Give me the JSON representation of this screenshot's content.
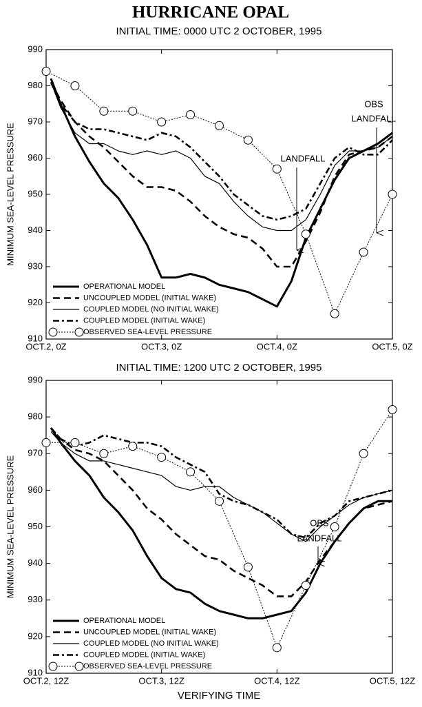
{
  "title": "HURRICANE OPAL",
  "xlabel": "VERIFYING TIME",
  "chart_data": [
    {
      "type": "line",
      "subtitle": "INITIAL TIME: 0000 UTC 2 OCTOBER, 1995",
      "ylabel": "MINIMUM SEA-LEVEL PRESSURE",
      "xlim": [
        0,
        72
      ],
      "ylim": [
        910,
        990
      ],
      "xticks": [
        {
          "value": 0,
          "label": "OCT.2, 0Z"
        },
        {
          "value": 24,
          "label": "OCT.3, 0Z"
        },
        {
          "value": 48,
          "label": "OCT.4, 0Z"
        },
        {
          "value": 72,
          "label": "OCT.5, 0Z"
        }
      ],
      "yticks": [
        910,
        920,
        930,
        940,
        950,
        960,
        970,
        980,
        990
      ],
      "legend": "lower left",
      "annotations": [
        [
          "LANDFALL"
        ],
        [
          "OBS",
          "LANDFALL"
        ]
      ],
      "series": [
        {
          "name": "OPERATIONAL MODEL",
          "color": "#000000",
          "width": 3,
          "dash": "none",
          "x": [
            1,
            3,
            6,
            9,
            12,
            15,
            18,
            21,
            24,
            27,
            30,
            33,
            36,
            39,
            42,
            45,
            48,
            51,
            54,
            57,
            60,
            63,
            66,
            69,
            72
          ],
          "values": [
            982,
            975,
            966,
            959,
            953,
            949,
            943,
            936,
            927,
            927,
            928,
            927,
            925,
            924,
            923,
            921,
            919,
            926,
            938,
            946,
            954,
            960,
            962,
            964,
            967
          ]
        },
        {
          "name": "UNCOUPLED MODEL (INITIAL WAKE)",
          "color": "#000000",
          "width": 2.6,
          "dash": "10,6",
          "x": [
            1,
            3,
            6,
            9,
            12,
            15,
            18,
            21,
            24,
            27,
            30,
            33,
            36,
            39,
            42,
            45,
            48,
            51,
            54,
            57,
            60,
            63,
            66,
            69,
            72
          ],
          "values": [
            981,
            976,
            970,
            966,
            963,
            959,
            955,
            952,
            952,
            951,
            948,
            944,
            941,
            939,
            938,
            935,
            930,
            930,
            937,
            945,
            955,
            961,
            962,
            963,
            966
          ]
        },
        {
          "name": "COUPLED MODEL (NO INITIAL WAKE)",
          "color": "#000000",
          "width": 1.2,
          "dash": "none",
          "x": [
            1,
            3,
            6,
            9,
            12,
            15,
            18,
            21,
            24,
            27,
            30,
            33,
            36,
            39,
            42,
            45,
            48,
            51,
            54,
            57,
            60,
            63,
            66,
            69,
            72
          ],
          "values": [
            981,
            974,
            967,
            964,
            964,
            962,
            961,
            962,
            961,
            962,
            960,
            955,
            953,
            948,
            944,
            941,
            940,
            940,
            943,
            950,
            958,
            962,
            962,
            963,
            966
          ]
        },
        {
          "name": "COUPLED MODEL (INITIAL WAKE)",
          "color": "#000000",
          "width": 2.6,
          "dash": "9,4,3,4",
          "x": [
            1,
            3,
            6,
            9,
            12,
            15,
            18,
            21,
            24,
            27,
            30,
            33,
            36,
            39,
            42,
            45,
            48,
            51,
            54,
            57,
            60,
            63,
            66,
            69,
            72
          ],
          "values": [
            981,
            975,
            970,
            968,
            968,
            967,
            966,
            965,
            967,
            966,
            963,
            959,
            955,
            950,
            947,
            944,
            943,
            944,
            946,
            953,
            960,
            963,
            961,
            961,
            965
          ]
        },
        {
          "name": "OBSERVED SEA-LEVEL PRESSURE",
          "color": "#000000",
          "width": 1,
          "dash": "2,2",
          "marker": "circle",
          "x": [
            0,
            6,
            12,
            18,
            24,
            30,
            36,
            42,
            48,
            54,
            60,
            66,
            72
          ],
          "values": [
            984,
            980,
            973,
            973,
            970,
            972,
            969,
            965,
            957,
            939,
            917,
            934,
            950
          ]
        }
      ]
    },
    {
      "type": "line",
      "subtitle": "INITIAL TIME: 1200 UTC 2 OCTOBER, 1995",
      "ylabel": "MINIMUM SEA-LEVEL PRESSURE",
      "xlim": [
        0,
        72
      ],
      "ylim": [
        910,
        990
      ],
      "xticks": [
        {
          "value": 0,
          "label": "OCT.2, 12Z"
        },
        {
          "value": 24,
          "label": "OCT.3, 12Z"
        },
        {
          "value": 48,
          "label": "OCT.4, 12Z"
        },
        {
          "value": 72,
          "label": "OCT.5, 12Z"
        }
      ],
      "yticks": [
        910,
        920,
        930,
        940,
        950,
        960,
        970,
        980,
        990
      ],
      "legend": "lower left",
      "annotations": [
        [
          "OBS",
          "LANDFALL"
        ]
      ],
      "series": [
        {
          "name": "OPERATIONAL MODEL",
          "color": "#000000",
          "width": 3,
          "dash": "none",
          "x": [
            1,
            3,
            6,
            9,
            12,
            15,
            18,
            21,
            24,
            27,
            30,
            33,
            36,
            39,
            42,
            45,
            48,
            51,
            54,
            57,
            60,
            63,
            66,
            69,
            72
          ],
          "values": [
            977,
            973,
            968,
            964,
            958,
            954,
            949,
            942,
            936,
            933,
            932,
            929,
            927,
            926,
            925,
            925,
            926,
            927,
            932,
            940,
            946,
            951,
            955,
            957,
            957
          ]
        },
        {
          "name": "UNCOUPLED MODEL (INITIAL WAKE)",
          "color": "#000000",
          "width": 2.6,
          "dash": "10,6",
          "x": [
            1,
            3,
            6,
            9,
            12,
            15,
            18,
            21,
            24,
            27,
            30,
            33,
            36,
            39,
            42,
            45,
            48,
            51,
            54,
            57,
            60,
            63,
            66,
            69,
            72
          ],
          "values": [
            977,
            974,
            971,
            970,
            968,
            964,
            960,
            955,
            952,
            948,
            945,
            942,
            941,
            938,
            936,
            934,
            931,
            931,
            935,
            941,
            946,
            951,
            955,
            956,
            957
          ]
        },
        {
          "name": "COUPLED MODEL (NO INITIAL WAKE)",
          "color": "#000000",
          "width": 1.2,
          "dash": "none",
          "x": [
            1,
            3,
            6,
            9,
            12,
            15,
            18,
            21,
            24,
            27,
            30,
            33,
            36,
            39,
            42,
            45,
            48,
            51,
            54,
            57,
            60,
            63,
            66,
            69,
            72
          ],
          "values": [
            976,
            973,
            970,
            968,
            968,
            967,
            966,
            965,
            964,
            961,
            960,
            961,
            961,
            958,
            956,
            954,
            951,
            948,
            946,
            950,
            953,
            956,
            958,
            959,
            960
          ]
        },
        {
          "name": "COUPLED MODEL (INITIAL WAKE)",
          "color": "#000000",
          "width": 2.6,
          "dash": "9,4,3,4",
          "x": [
            1,
            3,
            6,
            9,
            12,
            15,
            18,
            21,
            24,
            27,
            30,
            33,
            36,
            39,
            42,
            45,
            48,
            51,
            54,
            57,
            60,
            63,
            66,
            69,
            72
          ],
          "values": [
            977,
            974,
            972,
            973,
            975,
            974,
            973,
            973,
            972,
            969,
            967,
            965,
            959,
            957,
            956,
            954,
            952,
            948,
            947,
            951,
            953,
            957,
            958,
            959,
            960
          ]
        },
        {
          "name": "OBSERVED SEA-LEVEL PRESSURE",
          "color": "#000000",
          "width": 1,
          "dash": "2,2",
          "marker": "circle",
          "x": [
            0,
            6,
            12,
            18,
            24,
            30,
            36,
            42,
            48,
            54,
            60,
            66,
            72
          ],
          "values": [
            973,
            973,
            970,
            972,
            969,
            965,
            957,
            939,
            917,
            934,
            950,
            970,
            982
          ]
        }
      ]
    }
  ]
}
